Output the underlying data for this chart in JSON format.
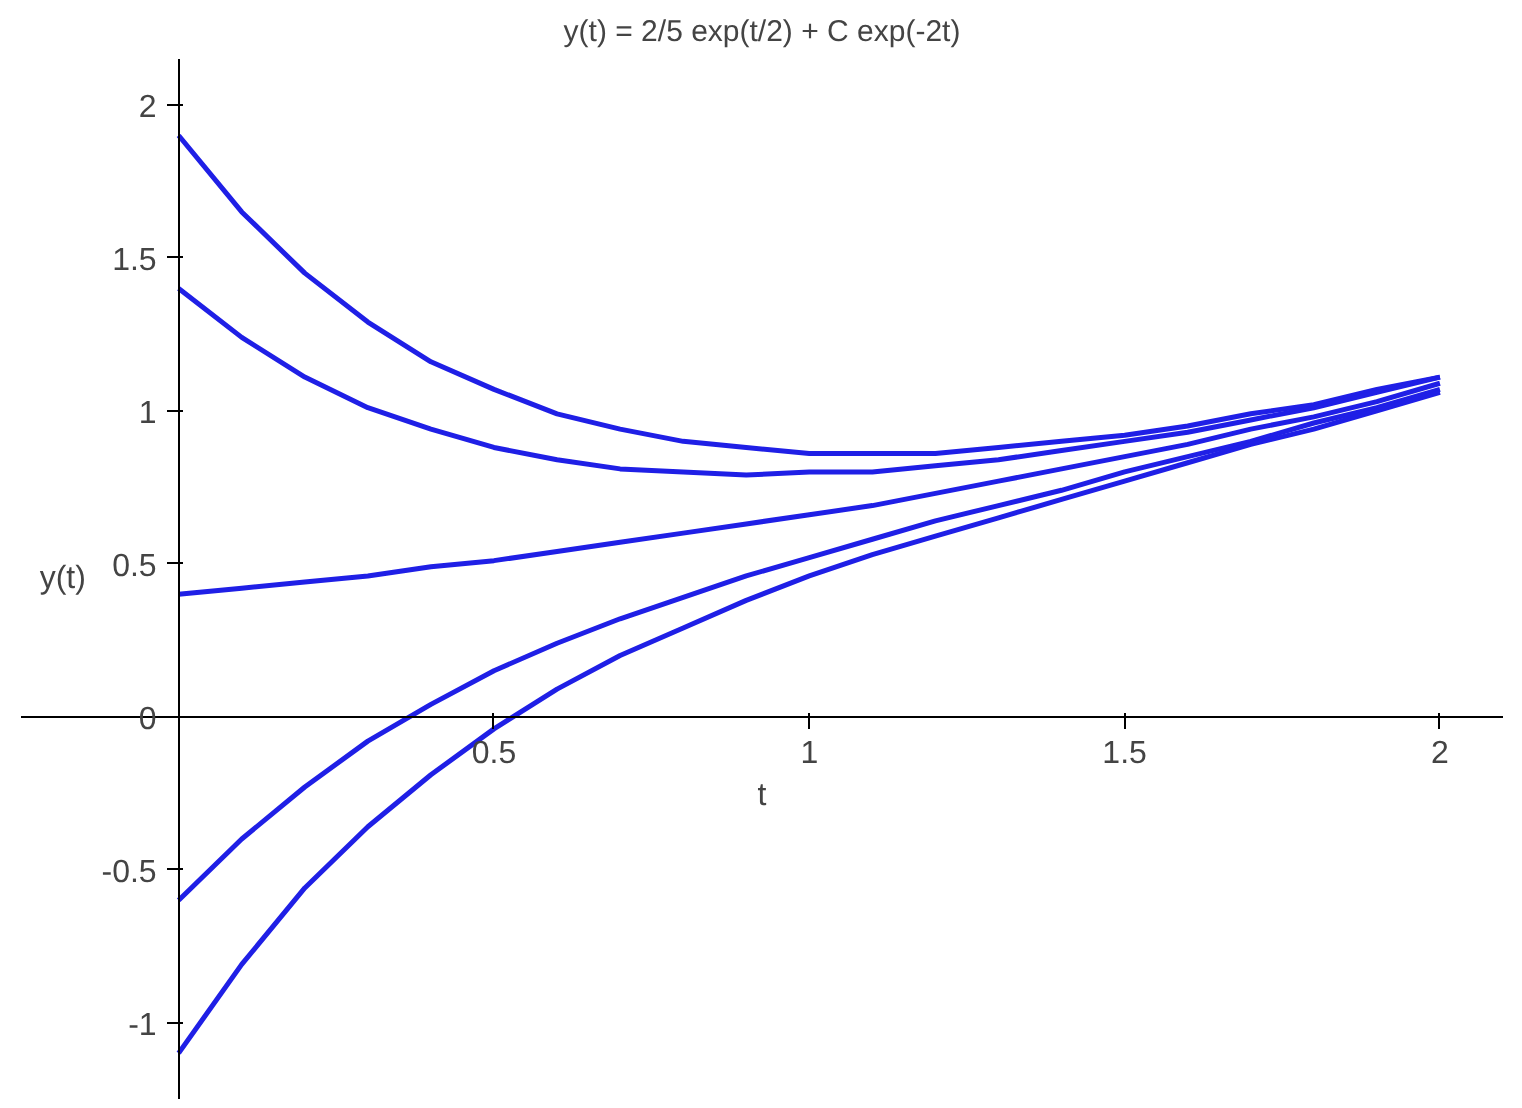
{
  "chart_data": {
    "type": "line",
    "title": "y(t) = 2/5 exp(t/2) + C exp(-2t)",
    "xlabel": "t",
    "ylabel": "y(t)",
    "x": [
      0,
      0.1,
      0.2,
      0.3,
      0.4,
      0.5,
      0.6,
      0.7,
      0.8,
      0.9,
      1,
      1.1,
      1.2,
      1.3,
      1.4,
      1.5,
      1.6,
      1.7,
      1.8,
      1.9,
      2
    ],
    "series": [
      {
        "color": "#1f1fe6",
        "values": [
          1.9,
          1.65,
          1.45,
          1.29,
          1.16,
          1.07,
          0.99,
          0.94,
          0.9,
          0.88,
          0.86,
          0.86,
          0.86,
          0.88,
          0.9,
          0.92,
          0.95,
          0.99,
          1.02,
          1.07,
          1.11
        ]
      },
      {
        "color": "#1f1fe6",
        "values": [
          1.4,
          1.24,
          1.11,
          1.01,
          0.94,
          0.88,
          0.84,
          0.81,
          0.8,
          0.79,
          0.8,
          0.8,
          0.82,
          0.84,
          0.87,
          0.9,
          0.93,
          0.97,
          1.01,
          1.06,
          1.11
        ]
      },
      {
        "color": "#1f1fe6",
        "values": [
          0.4,
          0.42,
          0.44,
          0.46,
          0.49,
          0.51,
          0.54,
          0.57,
          0.6,
          0.63,
          0.66,
          0.69,
          0.73,
          0.77,
          0.81,
          0.85,
          0.89,
          0.94,
          0.98,
          1.03,
          1.09
        ]
      },
      {
        "color": "#1f1fe6",
        "values": [
          -0.6,
          -0.4,
          -0.23,
          -0.08,
          0.04,
          0.15,
          0.24,
          0.32,
          0.39,
          0.46,
          0.52,
          0.58,
          0.64,
          0.69,
          0.74,
          0.8,
          0.85,
          0.9,
          0.96,
          1.01,
          1.07
        ]
      },
      {
        "color": "#1f1fe6",
        "values": [
          -1.1,
          -0.81,
          -0.56,
          -0.36,
          -0.19,
          -0.04,
          0.09,
          0.2,
          0.29,
          0.38,
          0.46,
          0.53,
          0.59,
          0.65,
          0.71,
          0.77,
          0.83,
          0.89,
          0.94,
          1.0,
          1.06
        ]
      }
    ],
    "xlim": [
      -0.25,
      2.1
    ],
    "ylim": [
      -1.25,
      2.15
    ],
    "xticks": [
      0.5,
      1,
      1.5,
      2
    ],
    "yticks": [
      -1,
      -0.5,
      0,
      0.5,
      1,
      1.5,
      2
    ]
  }
}
